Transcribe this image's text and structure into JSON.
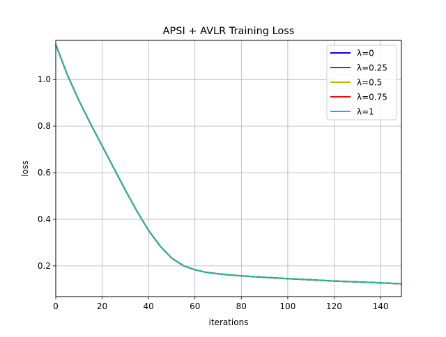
{
  "chart_data": {
    "type": "line",
    "title": "APSI + AVLR Training Loss",
    "xlabel": "iterations",
    "ylabel": "loss",
    "xlim": [
      0,
      149
    ],
    "ylim": [
      0.068,
      1.168
    ],
    "xticks": [
      0,
      20,
      40,
      60,
      80,
      100,
      120,
      140
    ],
    "yticks": [
      0.2,
      0.4,
      0.6,
      0.8,
      1.0
    ],
    "xtick_labels": [
      "0",
      "20",
      "40",
      "60",
      "80",
      "100",
      "120",
      "140"
    ],
    "ytick_labels": [
      "0.2",
      "0.4",
      "0.6",
      "0.8",
      "1.0"
    ],
    "grid": true,
    "legend_position": "top-right",
    "x": [
      0,
      5,
      10,
      15,
      20,
      25,
      30,
      35,
      40,
      45,
      50,
      55,
      60,
      65,
      70,
      75,
      80,
      90,
      100,
      110,
      120,
      130,
      140,
      149
    ],
    "series": [
      {
        "name": "λ=0",
        "color": "#0000ff",
        "values": [
          1.15,
          1.02,
          0.91,
          0.81,
          0.715,
          0.62,
          0.525,
          0.435,
          0.352,
          0.285,
          0.233,
          0.201,
          0.183,
          0.172,
          0.166,
          0.161,
          0.157,
          0.151,
          0.145,
          0.14,
          0.135,
          0.131,
          0.127,
          0.123
        ]
      },
      {
        "name": "λ=0.25",
        "color": "#008000",
        "values": [
          1.15,
          1.02,
          0.91,
          0.81,
          0.715,
          0.62,
          0.525,
          0.435,
          0.352,
          0.285,
          0.233,
          0.201,
          0.183,
          0.172,
          0.166,
          0.161,
          0.157,
          0.151,
          0.145,
          0.14,
          0.135,
          0.131,
          0.127,
          0.123
        ]
      },
      {
        "name": "λ=0.5",
        "color": "#bfbf00",
        "values": [
          1.15,
          1.02,
          0.91,
          0.81,
          0.715,
          0.62,
          0.525,
          0.435,
          0.352,
          0.285,
          0.233,
          0.201,
          0.183,
          0.172,
          0.166,
          0.161,
          0.157,
          0.151,
          0.145,
          0.14,
          0.135,
          0.131,
          0.127,
          0.123
        ]
      },
      {
        "name": "λ=0.75",
        "color": "#ff0000",
        "values": [
          1.15,
          1.02,
          0.91,
          0.81,
          0.715,
          0.62,
          0.525,
          0.435,
          0.352,
          0.285,
          0.233,
          0.201,
          0.183,
          0.172,
          0.166,
          0.161,
          0.157,
          0.151,
          0.145,
          0.14,
          0.135,
          0.131,
          0.127,
          0.123
        ]
      },
      {
        "name": "λ=1",
        "color": "#20b8a0",
        "values": [
          1.15,
          1.02,
          0.91,
          0.81,
          0.715,
          0.62,
          0.525,
          0.435,
          0.352,
          0.285,
          0.233,
          0.201,
          0.183,
          0.172,
          0.166,
          0.161,
          0.157,
          0.151,
          0.145,
          0.14,
          0.135,
          0.131,
          0.127,
          0.123
        ]
      }
    ]
  }
}
